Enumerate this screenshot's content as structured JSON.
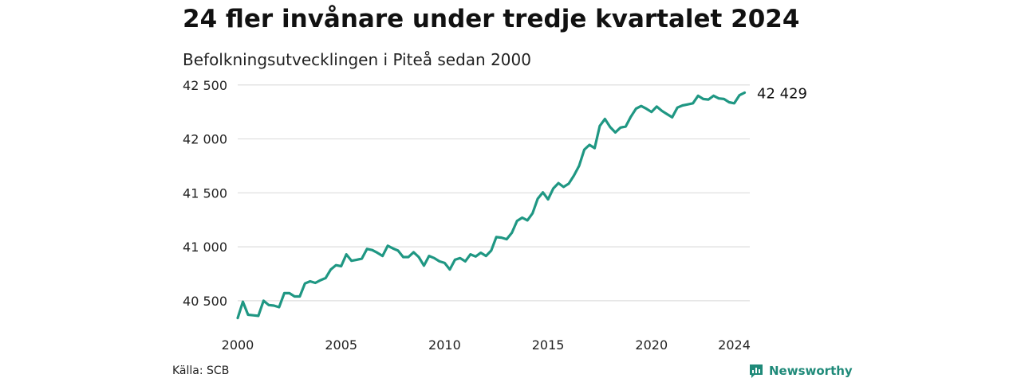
{
  "title": "24 fler invånare under tredje kvartalet 2024",
  "subtitle": "Befolkningsutvecklingen i Piteå sedan 2000",
  "source": "Källa: SCB",
  "brand": "Newsworthy",
  "colors": {
    "line": "#1f9783",
    "grid": "#dddddd",
    "brand": "#1f8a79"
  },
  "chart_data": {
    "type": "line",
    "title": "24 fler invånare under tredje kvartalet 2024",
    "subtitle": "Befolkningsutvecklingen i Piteå sedan 2000",
    "ylim": [
      40300,
      42550
    ],
    "xlim": [
      2000,
      2024.75
    ],
    "yticks": [
      40500,
      41000,
      41500,
      42000,
      42500
    ],
    "ytick_labels": [
      "40 500",
      "41 000",
      "41 500",
      "42 000",
      "42 500"
    ],
    "xticks": [
      2000,
      2005,
      2010,
      2015,
      2020,
      2024
    ],
    "xtick_labels": [
      "2000",
      "2005",
      "2010",
      "2015",
      "2020",
      "2024"
    ],
    "grid": true,
    "end_label": "42 429",
    "series": [
      {
        "x": [
          "2000-Q1",
          "2000-Q2",
          "2000-Q3",
          "2000-Q4",
          "2001-Q1",
          "2001-Q2",
          "2001-Q3",
          "2001-Q4",
          "2002-Q1",
          "2002-Q2",
          "2002-Q3",
          "2002-Q4",
          "2003-Q1",
          "2003-Q2",
          "2003-Q3",
          "2003-Q4",
          "2004-Q1",
          "2004-Q2",
          "2004-Q3",
          "2004-Q4",
          "2005-Q1",
          "2005-Q2",
          "2005-Q3",
          "2005-Q4",
          "2006-Q1",
          "2006-Q2",
          "2006-Q3",
          "2006-Q4",
          "2007-Q1",
          "2007-Q2",
          "2007-Q3",
          "2007-Q4",
          "2008-Q1",
          "2008-Q2",
          "2008-Q3",
          "2008-Q4",
          "2009-Q1",
          "2009-Q2",
          "2009-Q3",
          "2009-Q4",
          "2010-Q1",
          "2010-Q2",
          "2010-Q3",
          "2010-Q4",
          "2011-Q1",
          "2011-Q2",
          "2011-Q3",
          "2011-Q4",
          "2012-Q1",
          "2012-Q2",
          "2012-Q3",
          "2012-Q4",
          "2013-Q1",
          "2013-Q2",
          "2013-Q3",
          "2013-Q4",
          "2014-Q1",
          "2014-Q2",
          "2014-Q3",
          "2014-Q4",
          "2015-Q1",
          "2015-Q2",
          "2015-Q3",
          "2015-Q4",
          "2016-Q1",
          "2016-Q2",
          "2016-Q3",
          "2016-Q4",
          "2017-Q1",
          "2017-Q2",
          "2017-Q3",
          "2017-Q4",
          "2018-Q1",
          "2018-Q2",
          "2018-Q3",
          "2018-Q4",
          "2019-Q1",
          "2019-Q2",
          "2019-Q3",
          "2019-Q4",
          "2020-Q1",
          "2020-Q2",
          "2020-Q3",
          "2020-Q4",
          "2021-Q1",
          "2021-Q2",
          "2021-Q3",
          "2021-Q4",
          "2022-Q1",
          "2022-Q2",
          "2022-Q3",
          "2022-Q4",
          "2023-Q1",
          "2023-Q2",
          "2023-Q3",
          "2023-Q4",
          "2024-Q1",
          "2024-Q2",
          "2024-Q3"
        ],
        "values": [
          40340,
          40490,
          40370,
          40365,
          40360,
          40500,
          40460,
          40455,
          40440,
          40570,
          40570,
          40540,
          40540,
          40660,
          40680,
          40665,
          40690,
          40710,
          40790,
          40830,
          40820,
          40930,
          40870,
          40880,
          40890,
          40980,
          40970,
          40945,
          40915,
          41010,
          40985,
          40965,
          40905,
          40905,
          40950,
          40905,
          40825,
          40915,
          40895,
          40865,
          40850,
          40790,
          40880,
          40895,
          40865,
          40930,
          40910,
          40945,
          40915,
          40965,
          41090,
          41085,
          41070,
          41130,
          41240,
          41270,
          41245,
          41310,
          41445,
          41505,
          41440,
          41540,
          41590,
          41555,
          41585,
          41660,
          41750,
          41900,
          41945,
          41915,
          42120,
          42185,
          42110,
          42060,
          42105,
          42115,
          42205,
          42280,
          42305,
          42280,
          42250,
          42300,
          42260,
          42230,
          42200,
          42290,
          42310,
          42320,
          42330,
          42400,
          42370,
          42365,
          42400,
          42375,
          42370,
          42340,
          42330,
          42405,
          42429
        ]
      }
    ]
  }
}
